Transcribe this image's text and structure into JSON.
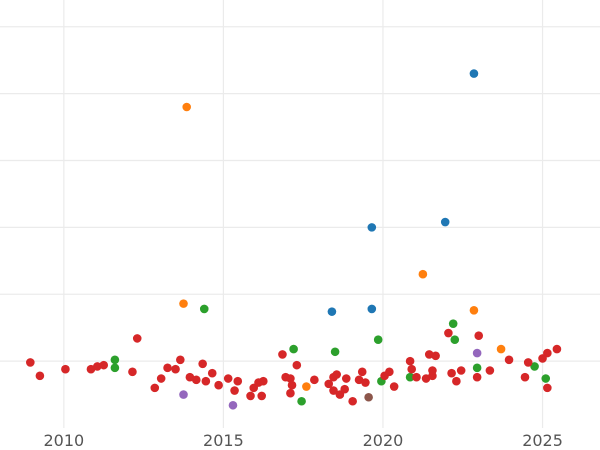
{
  "chart_data": {
    "type": "scatter",
    "title": "",
    "xlabel": "",
    "ylabel": "",
    "xlim": [
      2008.0,
      2026.8
    ],
    "ylim": [
      -5,
      27
    ],
    "x_ticks": [
      2010,
      2015,
      2020,
      2025
    ],
    "x_tick_labels": [
      "2010",
      "2015",
      "2020",
      "2025"
    ],
    "y_gridlines": [
      0,
      5,
      10,
      15,
      20,
      25
    ],
    "grid": true,
    "legend": "none",
    "colors": {
      "blue": "#1f77b4",
      "orange": "#ff7f0e",
      "green": "#2ca02c",
      "red": "#d62728",
      "purple": "#9467bd",
      "brown": "#8c564b"
    },
    "series": [
      {
        "color": "#1f77b4",
        "points": [
          [
            2019.65,
            10.0
          ],
          [
            2021.95,
            10.4
          ],
          [
            2022.85,
            21.5
          ],
          [
            2018.4,
            3.7
          ],
          [
            2019.65,
            3.9
          ]
        ]
      },
      {
        "color": "#ff7f0e",
        "points": [
          [
            2013.85,
            19.0
          ],
          [
            2013.75,
            4.3
          ],
          [
            2021.25,
            6.5
          ],
          [
            2022.85,
            3.8
          ],
          [
            2017.6,
            -1.9
          ],
          [
            2023.7,
            0.9
          ]
        ]
      },
      {
        "color": "#2ca02c",
        "points": [
          [
            2011.6,
            0.1
          ],
          [
            2011.6,
            -0.5
          ],
          [
            2014.4,
            3.9
          ],
          [
            2017.2,
            0.9
          ],
          [
            2017.45,
            -3.0
          ],
          [
            2018.5,
            0.7
          ],
          [
            2019.85,
            1.6
          ],
          [
            2019.95,
            -1.5
          ],
          [
            2020.85,
            -1.2
          ],
          [
            2022.2,
            2.8
          ],
          [
            2022.25,
            1.6
          ],
          [
            2022.95,
            -0.5
          ],
          [
            2024.75,
            -0.4
          ],
          [
            2025.1,
            -1.3
          ]
        ]
      },
      {
        "color": "#d62728",
        "points": [
          [
            2008.95,
            -0.1
          ],
          [
            2009.25,
            -1.1
          ],
          [
            2010.05,
            -0.6
          ],
          [
            2010.85,
            -0.6
          ],
          [
            2011.05,
            -0.4
          ],
          [
            2011.25,
            -0.3
          ],
          [
            2012.15,
            -0.8
          ],
          [
            2012.3,
            1.7
          ],
          [
            2012.85,
            -2.0
          ],
          [
            2013.05,
            -1.3
          ],
          [
            2013.25,
            -0.5
          ],
          [
            2013.5,
            -0.6
          ],
          [
            2013.65,
            0.1
          ],
          [
            2013.95,
            -1.2
          ],
          [
            2014.15,
            -1.4
          ],
          [
            2014.45,
            -1.5
          ],
          [
            2014.35,
            -0.2
          ],
          [
            2014.65,
            -0.9
          ],
          [
            2014.85,
            -1.8
          ],
          [
            2015.15,
            -1.3
          ],
          [
            2015.35,
            -2.2
          ],
          [
            2015.45,
            -1.5
          ],
          [
            2015.85,
            -2.6
          ],
          [
            2015.95,
            -2.0
          ],
          [
            2016.1,
            -1.6
          ],
          [
            2016.2,
            -2.6
          ],
          [
            2016.25,
            -1.5
          ],
          [
            2016.85,
            0.5
          ],
          [
            2016.95,
            -1.2
          ],
          [
            2017.1,
            -1.3
          ],
          [
            2017.15,
            -1.8
          ],
          [
            2017.1,
            -2.4
          ],
          [
            2017.3,
            -0.3
          ],
          [
            2017.85,
            -1.4
          ],
          [
            2018.3,
            -1.7
          ],
          [
            2018.45,
            -1.2
          ],
          [
            2018.55,
            -1.0
          ],
          [
            2018.45,
            -2.2
          ],
          [
            2018.65,
            -2.5
          ],
          [
            2018.85,
            -1.3
          ],
          [
            2018.8,
            -2.1
          ],
          [
            2019.05,
            -3.0
          ],
          [
            2019.25,
            -1.4
          ],
          [
            2019.35,
            -0.8
          ],
          [
            2019.45,
            -1.6
          ],
          [
            2020.05,
            -1.1
          ],
          [
            2020.2,
            -0.8
          ],
          [
            2020.35,
            -1.9
          ],
          [
            2020.85,
            0.0
          ],
          [
            2020.9,
            -0.6
          ],
          [
            2021.05,
            -1.2
          ],
          [
            2021.35,
            -1.3
          ],
          [
            2021.55,
            -1.1
          ],
          [
            2021.55,
            -0.7
          ],
          [
            2021.45,
            0.5
          ],
          [
            2021.65,
            0.4
          ],
          [
            2022.05,
            2.1
          ],
          [
            2022.15,
            -0.9
          ],
          [
            2022.3,
            -1.5
          ],
          [
            2022.45,
            -0.7
          ],
          [
            2022.95,
            -1.2
          ],
          [
            2023.0,
            1.9
          ],
          [
            2023.35,
            -0.7
          ],
          [
            2023.95,
            0.1
          ],
          [
            2024.45,
            -1.2
          ],
          [
            2024.55,
            -0.1
          ],
          [
            2025.0,
            0.2
          ],
          [
            2025.15,
            0.6
          ],
          [
            2025.45,
            0.9
          ],
          [
            2025.15,
            -2.0
          ]
        ]
      },
      {
        "color": "#9467bd",
        "points": [
          [
            2013.75,
            -2.5
          ],
          [
            2015.3,
            -3.3
          ],
          [
            2022.95,
            0.6
          ]
        ]
      },
      {
        "color": "#8c564b",
        "points": [
          [
            2019.55,
            -2.7
          ]
        ]
      }
    ]
  }
}
